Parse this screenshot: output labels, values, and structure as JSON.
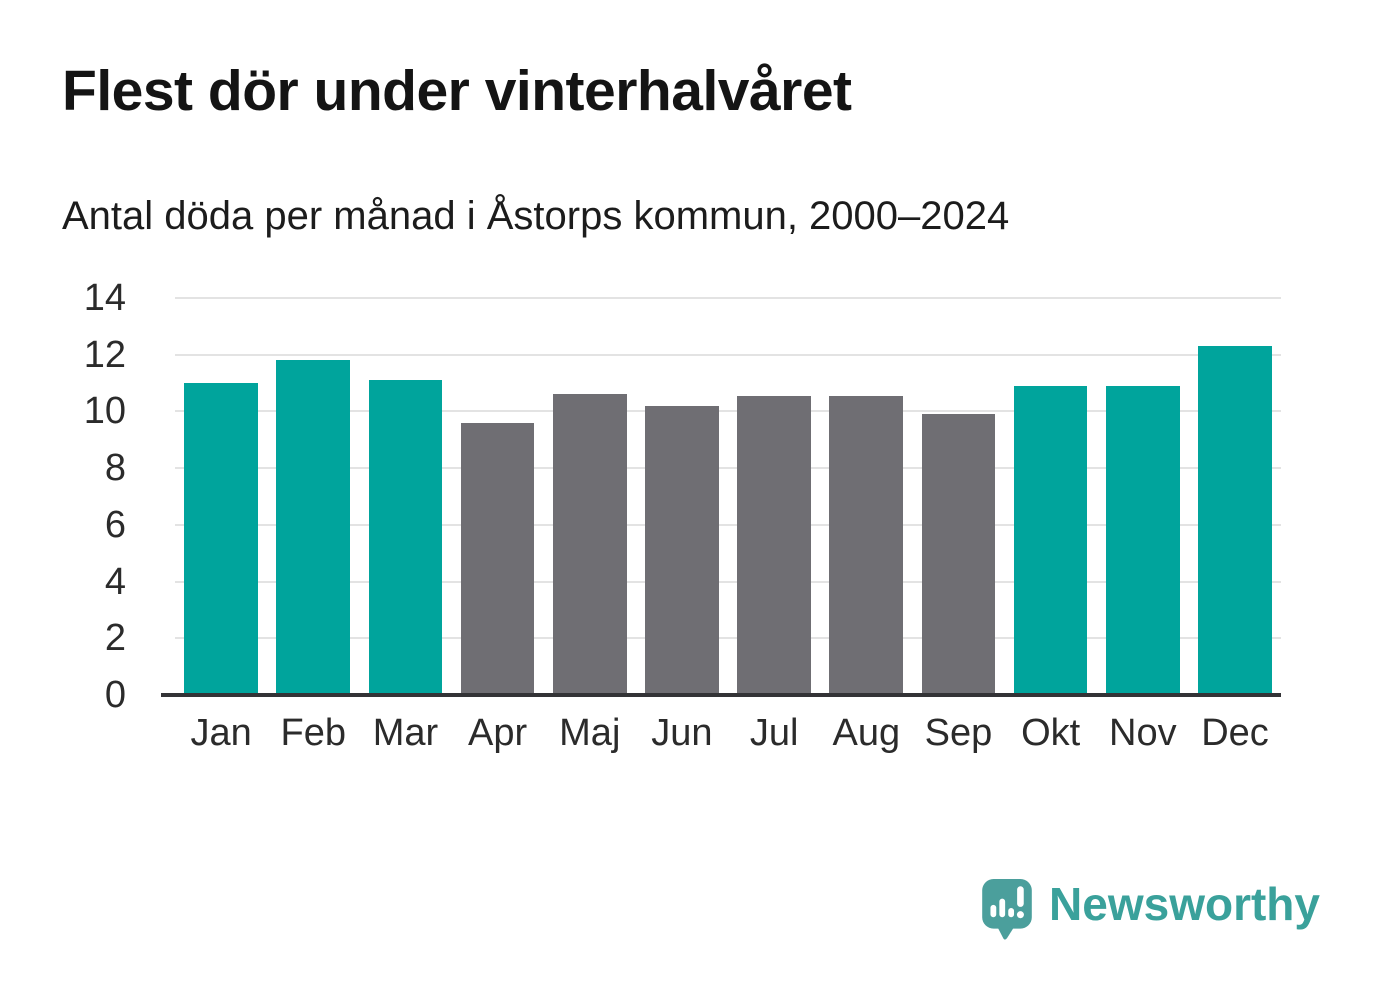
{
  "header": {
    "title": "Flest dör under vinterhalvåret",
    "subtitle": "Antal döda per månad i Åstorps kommun, 2000–2024"
  },
  "chart_data": {
    "type": "bar",
    "title": "Flest dör under vinterhalvåret",
    "subtitle": "Antal döda per månad i Åstorps kommun, 2000–2024",
    "categories": [
      "Jan",
      "Feb",
      "Mar",
      "Apr",
      "Maj",
      "Jun",
      "Jul",
      "Aug",
      "Sep",
      "Okt",
      "Nov",
      "Dec"
    ],
    "values": [
      11.0,
      11.8,
      11.1,
      9.6,
      10.6,
      10.2,
      10.55,
      10.55,
      9.9,
      10.9,
      10.9,
      12.3
    ],
    "colors": [
      "#00a49c",
      "#00a49c",
      "#00a49c",
      "#6f6e73",
      "#6f6e73",
      "#6f6e73",
      "#6f6e73",
      "#6f6e73",
      "#6f6e73",
      "#00a49c",
      "#00a49c",
      "#00a49c"
    ],
    "palette": {
      "winter_months": "#00a49c",
      "summer_months": "#6f6e73"
    },
    "xlabel": "",
    "ylabel": "",
    "ylim": [
      0,
      14
    ],
    "yticks": [
      0,
      2,
      4,
      6,
      8,
      10,
      12,
      14
    ],
    "grid": true,
    "legend": false
  },
  "footer": {
    "brand": "Newsworthy",
    "logo_icon": "newsworthy-speech-bubble-chart-icon",
    "brand_color": "#3aa19b"
  },
  "colors": {
    "background": "#ffffff",
    "title_text": "#141414",
    "axis_text": "#2b2b2b",
    "gridline": "#e3e3e3",
    "baseline": "#333336"
  }
}
